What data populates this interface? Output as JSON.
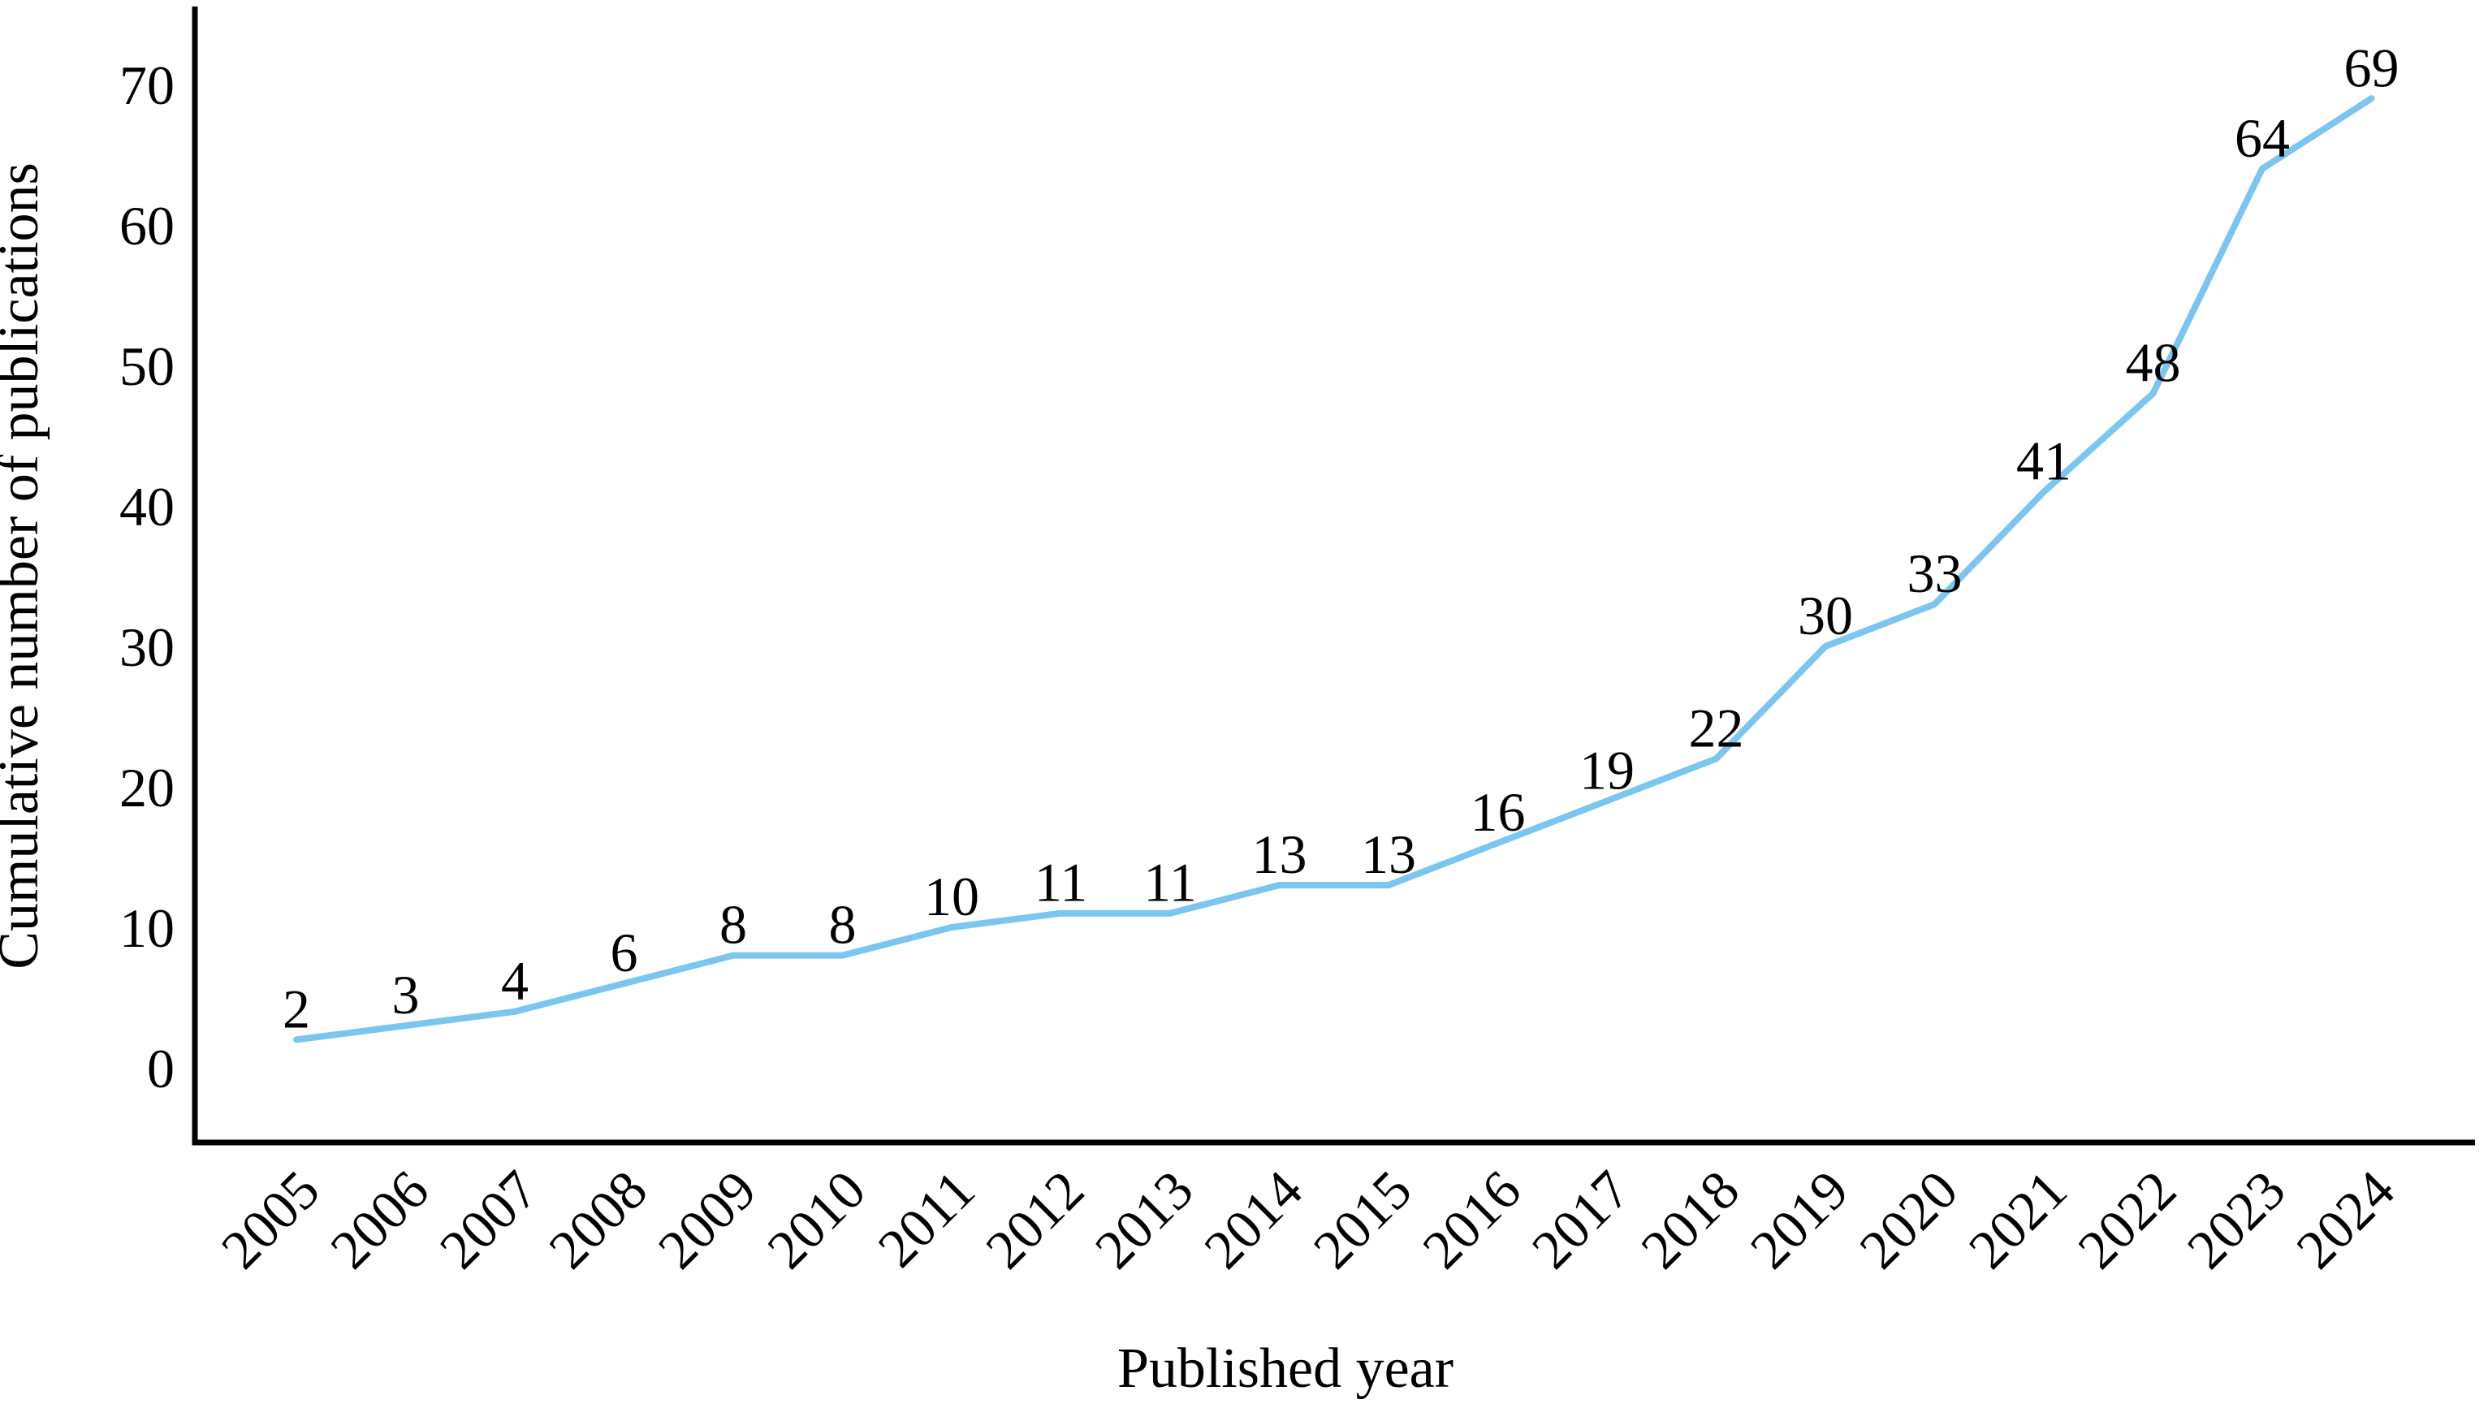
{
  "figure": {
    "background": "#ffffff"
  },
  "chart_data": {
    "type": "line",
    "title": "",
    "xlabel": "Published year",
    "ylabel": "Cumulative number of publications",
    "categories": [
      "2005",
      "2006",
      "2007",
      "2008",
      "2009",
      "2010",
      "2011",
      "2012",
      "2013",
      "2014",
      "2015",
      "2016",
      "2017",
      "2018",
      "2019",
      "2020",
      "2021",
      "2022",
      "2023",
      "2024"
    ],
    "values": [
      2,
      3,
      4,
      6,
      8,
      8,
      10,
      11,
      11,
      13,
      13,
      16,
      19,
      22,
      30,
      33,
      41,
      48,
      64,
      69
    ],
    "data_labels": [
      2,
      3,
      4,
      6,
      8,
      8,
      10,
      11,
      11,
      13,
      13,
      16,
      19,
      22,
      30,
      33,
      41,
      48,
      64,
      69
    ],
    "ylim": [
      0,
      70
    ],
    "yticks": [
      0,
      10,
      20,
      30,
      40,
      50,
      60,
      70
    ],
    "x_tick_rotation": 45,
    "grid": false,
    "legend": null,
    "show_markers": false,
    "line_color": "#7AC6F0",
    "axis_color": "#000000",
    "text_color": "#000000"
  }
}
